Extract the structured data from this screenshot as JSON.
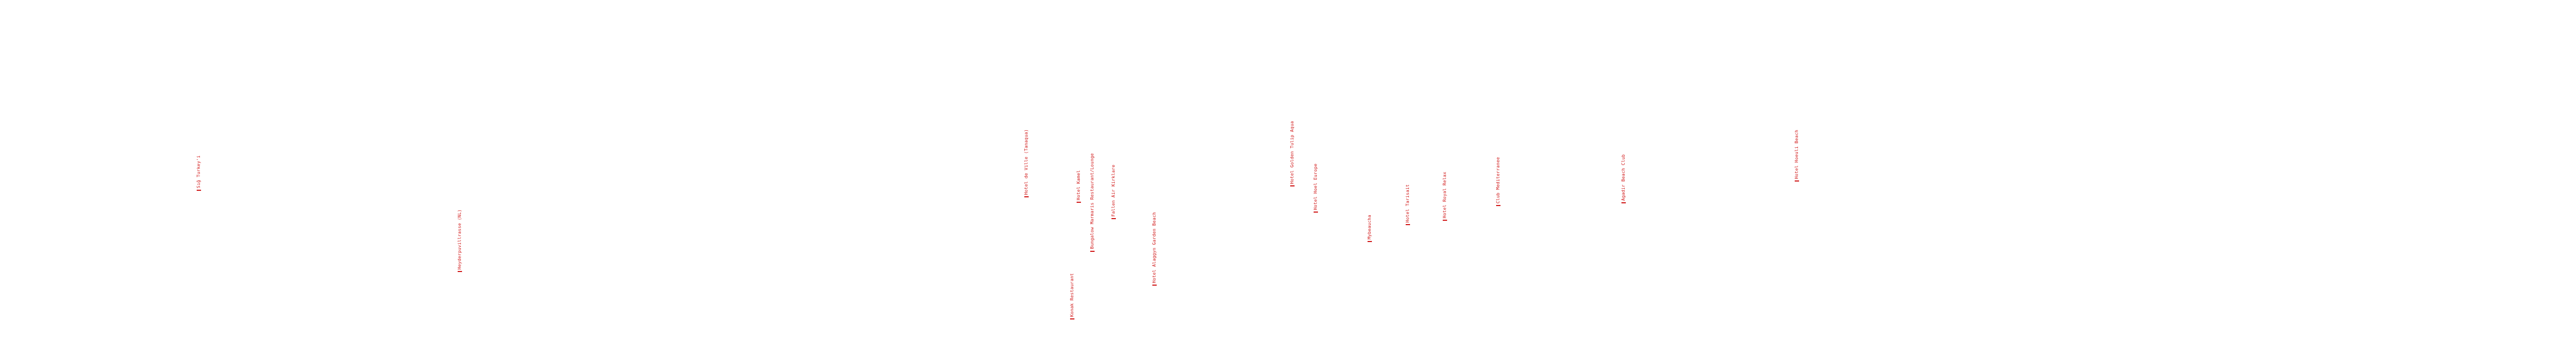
{
  "colors": {
    "background": "#ffffff",
    "label": "#d11a1a",
    "marker": "#d11a1a"
  },
  "pois": [
    {
      "label": "Sığ Turkey'i"
    },
    {
      "label": "Heyderpuvillrasse (NL)"
    },
    {
      "label": "Hotel de Ville (Tanaqua)"
    },
    {
      "label": "Konak Restaurant"
    },
    {
      "label": "Hotel Kamel"
    },
    {
      "label": "Bungalow Marmaris Restaurant/Lounge"
    },
    {
      "label": "Fallen Air Kirklare"
    },
    {
      "label": "Hotel Alaggyn Garden Beach"
    },
    {
      "label": "Hotel Golden Tulip Aqua"
    },
    {
      "label": "Hotel Hoel Europe"
    },
    {
      "label": "Mybeaucha"
    },
    {
      "label": "Hotel Tarisait"
    },
    {
      "label": "Hotel Royal Relax"
    },
    {
      "label": "Club Mediterranee"
    },
    {
      "label": "Agadir Beach Club"
    },
    {
      "label": "Hotel Hoeuli Beach"
    }
  ]
}
